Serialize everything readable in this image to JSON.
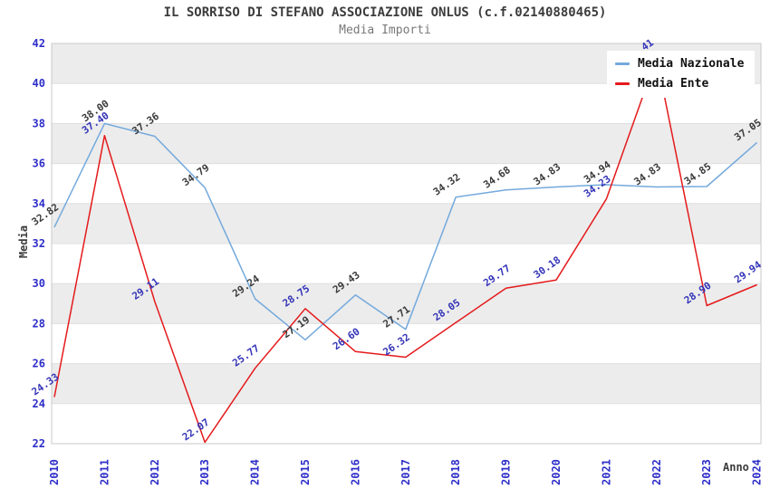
{
  "header": {
    "title": "IL SORRISO DI STEFANO ASSOCIAZIONE ONLUS (c.f.02140880465)",
    "subtitle": "Media Importi"
  },
  "legend": {
    "items": [
      {
        "label": "Media Nazionale",
        "color_key": "nazionale"
      },
      {
        "label": "Media Ente",
        "color_key": "ente"
      }
    ]
  },
  "colors": {
    "nazionale": "#74A9DC",
    "ente": "#E41A1C",
    "tick_label": "#2E2EC9",
    "label_nazionale": "#3A3A3A",
    "label_ente": "#3333B8",
    "band": "#ECECEC",
    "grid_line": "#DFDFDF",
    "plot_border": "#C8C8C8",
    "title_text": "#3C3C3C",
    "subtitle_text": "#787878"
  },
  "chart_data": {
    "type": "line",
    "title": "IL SORRISO DI STEFANO ASSOCIAZIONE ONLUS (c.f.02140880465)",
    "subtitle": "Media Importi",
    "xlabel": "Anno",
    "ylabel": "Media",
    "ylim": [
      22,
      42
    ],
    "ytick_step": 2,
    "grid": "alternating horizontal gray bands every 2 units",
    "legend_position": "top-right-inside",
    "x": [
      "2010",
      "2011",
      "2012",
      "2013",
      "2014",
      "2015",
      "2016",
      "2017",
      "2018",
      "2019",
      "2020",
      "2021",
      "2022",
      "2023",
      "2024"
    ],
    "series": [
      {
        "name": "Media Nazionale",
        "color_key": "nazionale",
        "label_color_key": "label_nazionale",
        "values": [
          32.82,
          38.0,
          37.36,
          34.79,
          29.24,
          27.19,
          29.43,
          27.71,
          34.32,
          34.68,
          34.83,
          34.94,
          34.83,
          34.85,
          37.05
        ],
        "labels": [
          "32.82",
          "38.00",
          "37.36",
          "34.79",
          "29.24",
          "27.19",
          "29.43",
          "27.71",
          "34.32",
          "34.68",
          "34.83",
          "34.94",
          "34.83",
          "34.85",
          "37.05"
        ]
      },
      {
        "name": "Media Ente",
        "color_key": "ente",
        "label_color_key": "label_ente",
        "values": [
          24.33,
          37.4,
          29.11,
          22.07,
          25.77,
          28.75,
          26.6,
          26.32,
          28.05,
          29.77,
          30.18,
          34.23,
          41.3,
          28.9,
          29.94
        ],
        "labels": [
          "24.33",
          "37.40",
          "29.11",
          "22.07",
          "25.77",
          "28.75",
          "26.60",
          "26.32",
          "28.05",
          "29.77",
          "30.18",
          "34.23",
          "41",
          "28.90",
          "29.94"
        ],
        "notes": {
          "2022": "peak hidden behind legend; value ~41.3 estimated, label clipped at plot top (only top of '41' visible)"
        }
      }
    ]
  }
}
